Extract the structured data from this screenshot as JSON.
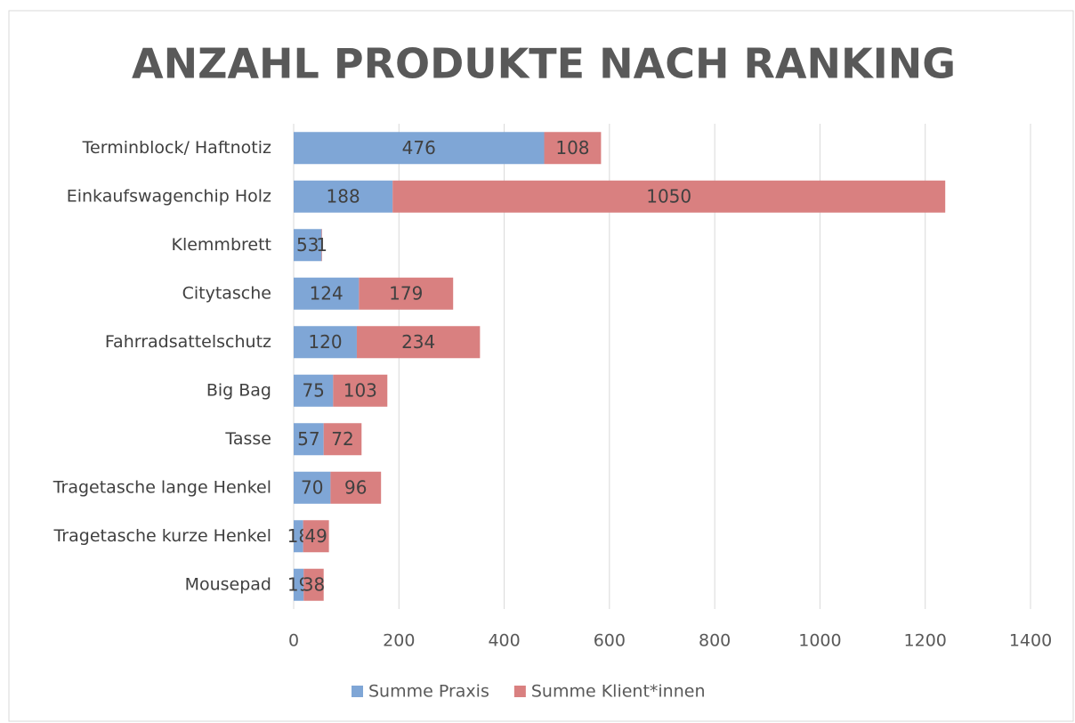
{
  "chart_data": {
    "type": "stacked_bar_horizontal",
    "title": "ANZAHL PRODUKTE NACH RANKING",
    "categories": [
      "Terminblock/ Haftnotiz",
      "Einkaufswagenchip Holz",
      "Klemmbrett",
      "Citytasche",
      "Fahrradsattelschutz",
      "Big Bag",
      "Tasse",
      "Tragetasche lange Henkel",
      "Tragetasche kurze Henkel",
      "Mousepad"
    ],
    "series": [
      {
        "name": "Summe Praxis",
        "color": "#7fa6d6",
        "values": [
          476,
          188,
          53,
          124,
          120,
          75,
          57,
          70,
          18,
          19
        ]
      },
      {
        "name": "Summe Klient*innen",
        "color": "#d98080",
        "values": [
          108,
          1050,
          1,
          179,
          234,
          103,
          72,
          96,
          49,
          38
        ]
      }
    ],
    "xlim": [
      0,
      1400
    ],
    "xticks": [
      0,
      200,
      400,
      600,
      800,
      1000,
      1200,
      1400
    ],
    "grid": true,
    "legend": "bottom"
  }
}
